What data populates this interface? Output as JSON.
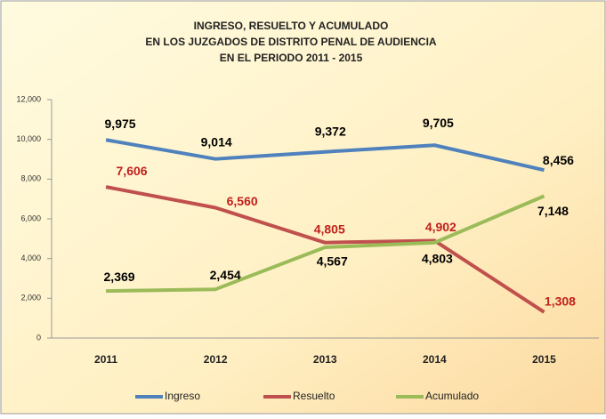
{
  "chart_data": {
    "type": "line",
    "title": [
      "INGRESO, RESUELTO Y ACUMULADO",
      "EN LOS JUZGADOS DE DISTRITO PENAL DE AUDIENCIA",
      "EN EL PERIODO 2011 - 2015"
    ],
    "categories": [
      "2011",
      "2012",
      "2013",
      "2014",
      "2015"
    ],
    "series": [
      {
        "name": "Ingreso",
        "color": "#4f81bd",
        "label_color": "#000000",
        "values": [
          9975,
          9014,
          9372,
          9705,
          8456
        ],
        "value_labels": [
          "9,975",
          "9,014",
          "9,372",
          "9,705",
          "8,456"
        ]
      },
      {
        "name": "Resuelto",
        "color": "#c0504d",
        "label_color": "#c0201d",
        "values": [
          7606,
          6560,
          4805,
          4902,
          1308
        ],
        "value_labels": [
          "7,606",
          "6,560",
          "4,805",
          "4,902",
          "1,308"
        ]
      },
      {
        "name": "Acumulado",
        "color": "#9bbb59",
        "label_color": "#000000",
        "values": [
          2369,
          2454,
          4567,
          4803,
          7148
        ],
        "value_labels": [
          "2,369",
          "2,454",
          "4,567",
          "4,803",
          "7,148"
        ]
      }
    ],
    "ylim": [
      0,
      12000
    ],
    "yticks": [
      0,
      {
        "value": 2000,
        "label": "2,000"
      },
      {
        "value": 4000,
        "label": "4,000"
      },
      {
        "value": 6000,
        "label": "6,000"
      },
      {
        "value": 8000,
        "label": "8,000"
      },
      {
        "value": 10000,
        "label": "10,000"
      },
      {
        "value": 12000,
        "label": "12,000"
      }
    ],
    "legend": "bottom"
  }
}
